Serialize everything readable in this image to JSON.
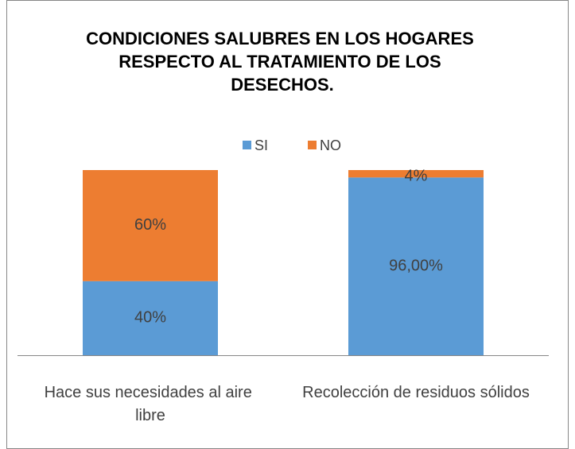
{
  "chart_data": {
    "type": "stacked_bar",
    "title": "CONDICIONES SALUBRES EN LOS HOGARES RESPECTO AL TRATAMIENTO DE LOS DESECHOS.",
    "categories": [
      "Hace sus necesidades al aire libre",
      "Recolección de residuos sólidos"
    ],
    "series": [
      {
        "name": "SI",
        "color": "#5b9bd5",
        "values": [
          40,
          96
        ],
        "value_labels": [
          "40%",
          "96,00%"
        ]
      },
      {
        "name": "NO",
        "color": "#ed7d31",
        "values": [
          60,
          4
        ],
        "value_labels": [
          "60%",
          "4%"
        ]
      }
    ],
    "legend": "top"
  }
}
